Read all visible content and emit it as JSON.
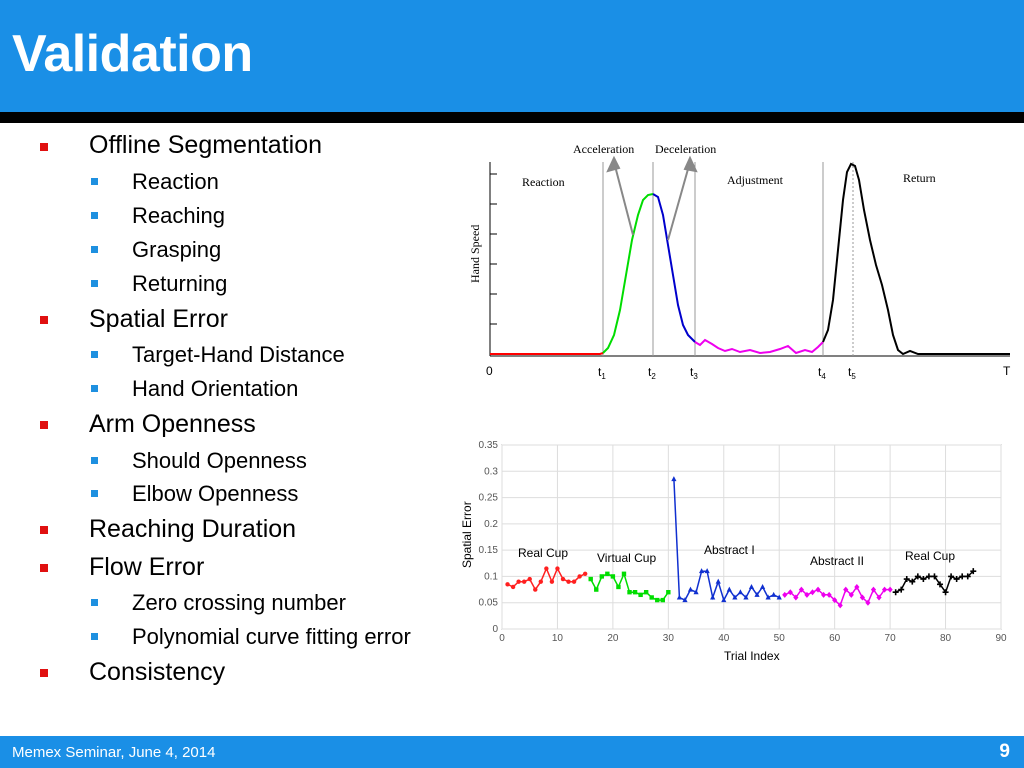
{
  "slide": {
    "title": "Validation"
  },
  "bullets": [
    {
      "text": "Offline Segmentation",
      "sub": [
        "Reaction",
        "Reaching",
        "Grasping",
        "Returning"
      ]
    },
    {
      "text": "Spatial Error",
      "sub": [
        "Target-Hand Distance",
        "Hand Orientation"
      ]
    },
    {
      "text": "Arm Openness",
      "sub": [
        "Should Openness",
        "Elbow Openness"
      ]
    },
    {
      "text": "Reaching Duration",
      "sub": []
    },
    {
      "text": "Flow Error",
      "sub": [
        "Zero crossing number",
        "Polynomial curve fitting error"
      ]
    },
    {
      "text": "Consistency",
      "sub": []
    }
  ],
  "footer": {
    "text": "Memex Seminar, June 4, 2014",
    "page": "9"
  },
  "colors": {
    "header": "#1a8fe6",
    "bullet_l1": "#e01010",
    "bullet_l2": "#1e90e0"
  },
  "chart_data": [
    {
      "type": "line",
      "title": "",
      "ylabel": "Hand Speed",
      "xlabel": "",
      "x_ticks": [
        "0",
        "t1",
        "t2",
        "t3",
        "t4",
        "t5",
        "T"
      ],
      "phase_labels": [
        "Reaction",
        "Adjustment",
        "Return"
      ],
      "annotations": [
        "Acceleration",
        "Deceleration"
      ],
      "segments": [
        {
          "color": "#ff0000",
          "phase": "Reaction"
        },
        {
          "color": "#00dd00",
          "phase": "Acceleration"
        },
        {
          "color": "#0000cc",
          "phase": "Deceleration"
        },
        {
          "color": "#ee00ee",
          "phase": "Adjustment"
        },
        {
          "color": "#000000",
          "phase": "Return"
        }
      ]
    },
    {
      "type": "scatter",
      "xlabel": "Trial Index",
      "ylabel": "Spatial Error",
      "xlim": [
        0,
        90
      ],
      "ylim": [
        0,
        0.35
      ],
      "x_ticks": [
        0,
        10,
        20,
        30,
        40,
        50,
        60,
        70,
        80,
        90
      ],
      "y_ticks": [
        0,
        0.05,
        0.1,
        0.15,
        0.2,
        0.25,
        0.3,
        0.35
      ],
      "grid": true,
      "series": [
        {
          "name": "Real Cup",
          "color": "#ff2020",
          "marker": "circle",
          "x": [
            1,
            2,
            3,
            4,
            5,
            6,
            7,
            8,
            9,
            10,
            11,
            12,
            13,
            14,
            15
          ],
          "y": [
            0.085,
            0.08,
            0.09,
            0.09,
            0.095,
            0.075,
            0.09,
            0.115,
            0.09,
            0.115,
            0.095,
            0.09,
            0.09,
            0.1,
            0.105
          ]
        },
        {
          "name": "Virtual Cup",
          "color": "#00dd00",
          "marker": "square",
          "x": [
            16,
            17,
            18,
            19,
            20,
            21,
            22,
            23,
            24,
            25,
            26,
            27,
            28,
            29,
            30
          ],
          "y": [
            0.095,
            0.075,
            0.1,
            0.105,
            0.1,
            0.08,
            0.105,
            0.07,
            0.07,
            0.065,
            0.07,
            0.06,
            0.055,
            0.055,
            0.07
          ]
        },
        {
          "name": "Abstract I",
          "color": "#1030d0",
          "marker": "triangle",
          "x": [
            31,
            32,
            33,
            34,
            35,
            36,
            37,
            38,
            39,
            40,
            41,
            42,
            43,
            44,
            45,
            46,
            47,
            48,
            49,
            50
          ],
          "y": [
            0.285,
            0.06,
            0.055,
            0.075,
            0.07,
            0.11,
            0.11,
            0.06,
            0.09,
            0.055,
            0.075,
            0.06,
            0.07,
            0.06,
            0.08,
            0.065,
            0.08,
            0.06,
            0.065,
            0.06
          ]
        },
        {
          "name": "Abstract II",
          "color": "#ee00ee",
          "marker": "diamond",
          "x": [
            51,
            52,
            53,
            54,
            55,
            56,
            57,
            58,
            59,
            60,
            61,
            62,
            63,
            64,
            65,
            66,
            67,
            68,
            69,
            70
          ],
          "y": [
            0.065,
            0.07,
            0.06,
            0.075,
            0.065,
            0.07,
            0.075,
            0.065,
            0.065,
            0.055,
            0.045,
            0.075,
            0.065,
            0.08,
            0.06,
            0.05,
            0.075,
            0.06,
            0.075,
            0.075
          ]
        },
        {
          "name": "Real Cup",
          "color": "#000000",
          "marker": "plus",
          "x": [
            71,
            72,
            73,
            74,
            75,
            76,
            77,
            78,
            79,
            80,
            81,
            82,
            83,
            84,
            85
          ],
          "y": [
            0.07,
            0.075,
            0.095,
            0.09,
            0.1,
            0.095,
            0.1,
            0.1,
            0.085,
            0.07,
            0.1,
            0.095,
            0.1,
            0.1,
            0.11
          ]
        }
      ]
    }
  ]
}
